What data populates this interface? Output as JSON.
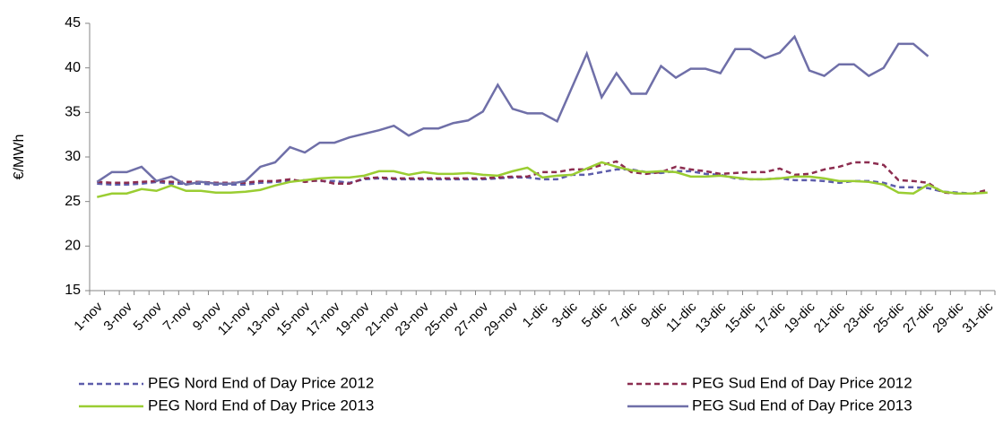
{
  "chart_data": {
    "type": "line",
    "ylabel": "€/MWh",
    "categories": [
      "1-nov",
      null,
      "3-nov",
      null,
      "5-nov",
      null,
      "7-nov",
      null,
      "9-nov",
      null,
      "11-nov",
      null,
      "13-nov",
      null,
      "15-nov",
      null,
      "17-nov",
      null,
      "19-nov",
      null,
      "21-nov",
      null,
      "23-nov",
      null,
      "25-nov",
      null,
      "27-nov",
      null,
      "29-nov",
      null,
      "1-dic",
      null,
      "3-dic",
      null,
      "5-dic",
      null,
      "7-dic",
      null,
      "9-dic",
      null,
      "11-dic",
      null,
      "13-dic",
      null,
      "15-dic",
      null,
      "17-dic",
      null,
      "19-dic",
      null,
      "21-dic",
      null,
      "23-dic",
      null,
      "25-dic",
      null,
      "27-dic",
      null,
      "29-dic",
      null,
      "31-dic"
    ],
    "ylim": [
      15,
      45
    ],
    "yticks": [
      15,
      20,
      25,
      30,
      35,
      40,
      45
    ],
    "grid": false,
    "legend": "bottom",
    "series": [
      {
        "name": "PEG Nord End of Day Price 2012",
        "color": "#5d5dab",
        "line_style": "dashed",
        "values": [
          27.0,
          26.9,
          26.9,
          27.0,
          27.2,
          27.0,
          27.0,
          27.0,
          26.9,
          26.9,
          26.9,
          27.1,
          27.2,
          27.3,
          27.4,
          27.3,
          27.3,
          27.1,
          27.5,
          27.6,
          27.5,
          27.5,
          27.5,
          27.5,
          27.5,
          27.5,
          27.5,
          27.6,
          27.7,
          27.7,
          27.5,
          27.5,
          28.0,
          28.0,
          28.3,
          28.6,
          28.6,
          28.3,
          28.2,
          28.4,
          28.4,
          28.1,
          28.0,
          27.6,
          27.5,
          27.5,
          27.6,
          27.4,
          27.4,
          27.3,
          27.1,
          27.3,
          27.3,
          27.1,
          26.6,
          26.6,
          26.5,
          26.1,
          26.0,
          25.9,
          26.1
        ]
      },
      {
        "name": "PEG Sud End of Day Price 2012",
        "color": "#8c2d50",
        "line_style": "dashed",
        "values": [
          27.2,
          27.1,
          27.1,
          27.2,
          27.3,
          27.2,
          27.2,
          27.2,
          27.1,
          27.1,
          27.1,
          27.3,
          27.3,
          27.5,
          27.2,
          27.4,
          27.0,
          27.0,
          27.6,
          27.7,
          27.6,
          27.6,
          27.6,
          27.6,
          27.6,
          27.6,
          27.6,
          27.7,
          27.8,
          27.8,
          28.3,
          28.3,
          28.6,
          28.6,
          29.1,
          29.5,
          28.3,
          28.1,
          28.3,
          28.9,
          28.6,
          28.4,
          28.1,
          28.2,
          28.3,
          28.3,
          28.7,
          28.0,
          28.1,
          28.6,
          28.9,
          29.4,
          29.4,
          29.1,
          27.4,
          27.3,
          27.1,
          26.0,
          25.9,
          25.9,
          26.3
        ]
      },
      {
        "name": "PEG Nord End of Day Price 2013",
        "color": "#9acd32",
        "line_style": "solid",
        "values": [
          25.5,
          25.9,
          25.9,
          26.4,
          26.2,
          26.8,
          26.2,
          26.2,
          26.0,
          26.0,
          26.1,
          26.3,
          26.8,
          27.2,
          27.4,
          27.6,
          27.7,
          27.7,
          27.9,
          28.4,
          28.4,
          28.0,
          28.3,
          28.1,
          28.1,
          28.2,
          28.0,
          27.9,
          28.4,
          28.8,
          27.7,
          27.9,
          28.0,
          28.7,
          29.4,
          28.9,
          28.5,
          28.3,
          28.4,
          28.3,
          27.8,
          27.8,
          27.9,
          27.7,
          27.5,
          27.5,
          27.6,
          27.8,
          27.8,
          27.6,
          27.3,
          27.3,
          27.2,
          26.9,
          26.0,
          25.9,
          26.9,
          26.1,
          25.9,
          25.9,
          26.0
        ]
      },
      {
        "name": "PEG Sud End of Day Price 2013",
        "color": "#6f6fa8",
        "line_style": "solid",
        "values": [
          27.2,
          28.3,
          28.3,
          28.9,
          27.3,
          27.8,
          26.9,
          27.2,
          27.0,
          27.0,
          27.3,
          28.9,
          29.4,
          31.1,
          30.5,
          31.6,
          31.6,
          32.2,
          32.6,
          33.0,
          33.5,
          32.4,
          33.2,
          33.2,
          33.8,
          34.1,
          35.1,
          38.1,
          35.4,
          34.9,
          34.9,
          34.0,
          37.8,
          41.6,
          36.7,
          39.4,
          37.1,
          37.1,
          40.2,
          38.9,
          39.9,
          39.9,
          39.4,
          42.1,
          42.1,
          41.1,
          41.7,
          43.5,
          39.7,
          39.1,
          40.4,
          40.4,
          39.1,
          40.0,
          42.7,
          42.7,
          41.3,
          null,
          null,
          null,
          null
        ]
      }
    ]
  }
}
